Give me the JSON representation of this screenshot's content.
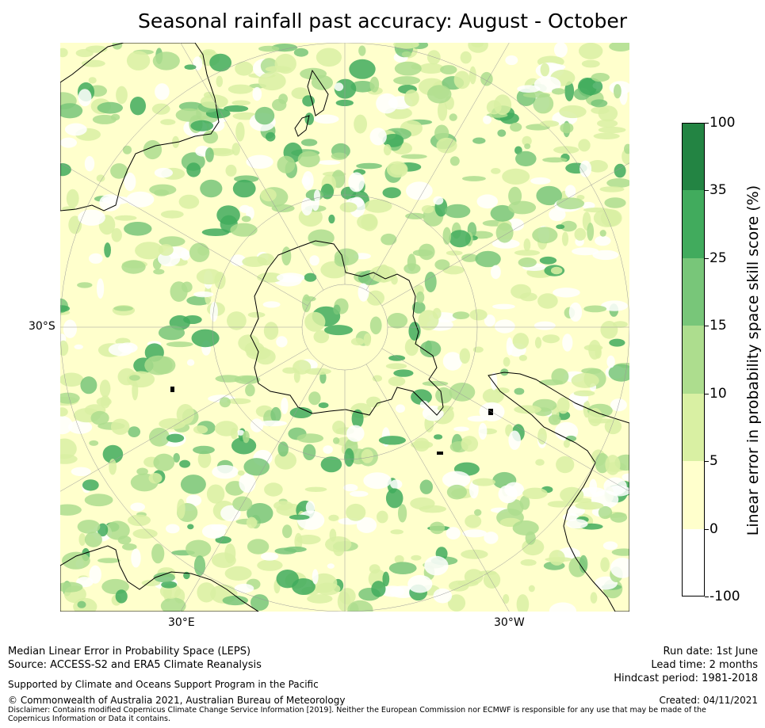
{
  "title": "Seasonal rainfall past accuracy: August - October",
  "map": {
    "lat_label": "30°S",
    "lon_labels": [
      "30°E",
      "30°W"
    ]
  },
  "colorbar": {
    "label": "Linear error in probability space skill score (%)",
    "ticks": [
      "100",
      "35",
      "25",
      "15",
      "10",
      "5",
      "0",
      "-100"
    ],
    "bins": [
      {
        "from": "35",
        "to": "100",
        "color": "#238443"
      },
      {
        "from": "25",
        "to": "35",
        "color": "#41ab5d"
      },
      {
        "from": "15",
        "to": "25",
        "color": "#78c679"
      },
      {
        "from": "10",
        "to": "15",
        "color": "#addd8e"
      },
      {
        "from": "5",
        "to": "10",
        "color": "#d9f0a3"
      },
      {
        "from": "0",
        "to": "5",
        "color": "#ffffcc"
      },
      {
        "from": "-100",
        "to": "0",
        "color": "#ffffff"
      }
    ]
  },
  "footer": {
    "line1": "Median Linear Error in Probability Space (LEPS)",
    "line2": "Source: ACCESS-S2 and ERA5 Climate Reanalysis",
    "line3": "Supported by Climate and Oceans Support Program in the Pacific",
    "line4": "© Commonwealth of Australia 2021, Australian Bureau of Meteorology",
    "disclaimer": "Disclaimer: Contains modified Copernicus Climate Change Service Information [2019]. Neither the European Commission nor ECMWF is responsible for any use that may be made of the Copernicus Information or Data it contains.",
    "run_date": "Run date: 1st June",
    "lead_time": "Lead time: 2 months",
    "hindcast": "Hindcast period: 1981-2018",
    "created": "Created: 04/11/2021"
  }
}
